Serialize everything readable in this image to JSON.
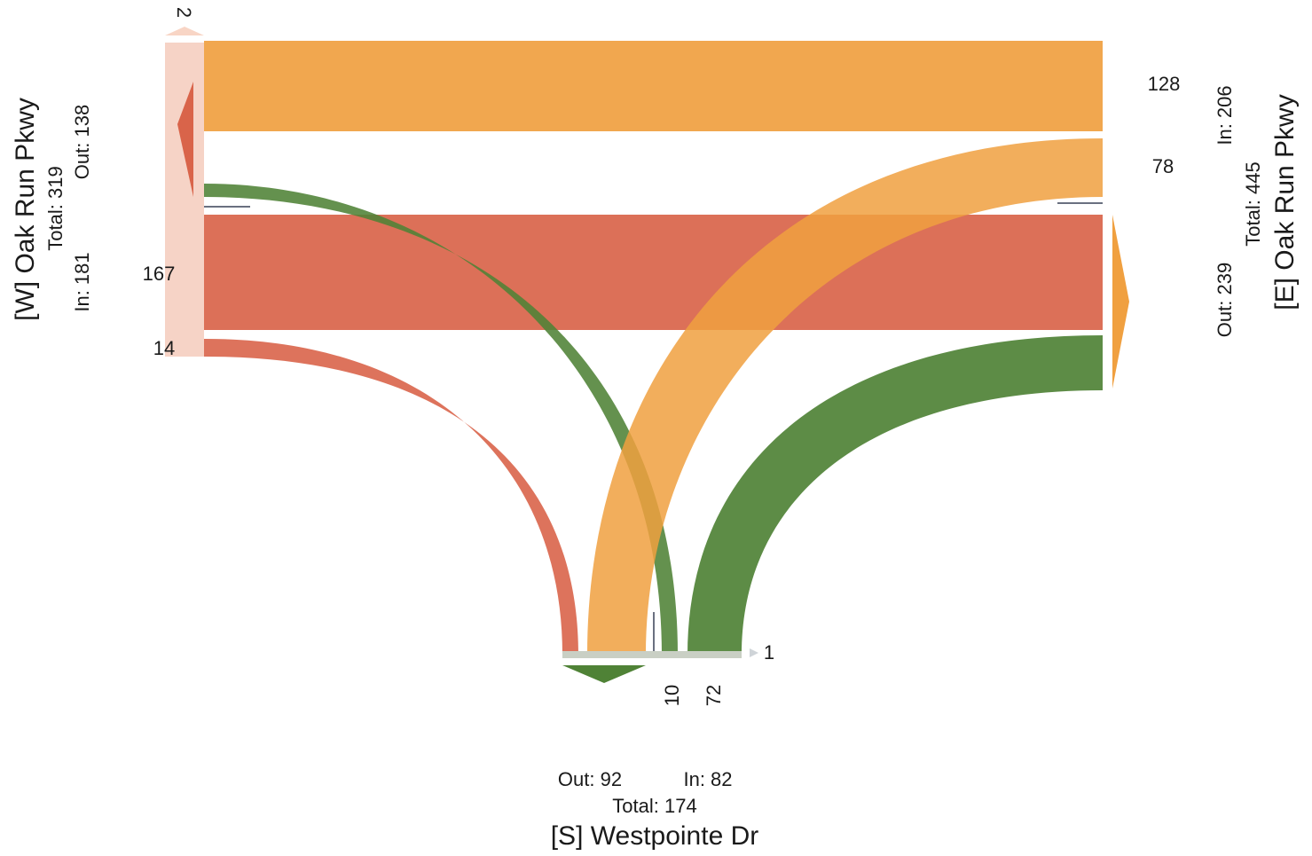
{
  "approaches": {
    "west": {
      "name": "[W] Oak Run Pkwy",
      "total": "Total: 319",
      "out": "Out: 138",
      "in": "In: 181"
    },
    "east": {
      "name": "[E] Oak Run Pkwy",
      "total": "Total: 445",
      "out": "Out: 239",
      "in": "In: 206"
    },
    "south": {
      "name": "[S] Westpointe Dr",
      "total": "Total: 174",
      "out": "Out: 92",
      "in": "In: 82"
    }
  },
  "movement_labels": {
    "w_uturn": "2",
    "w_through": "167",
    "w_right": "14",
    "e_through": "128",
    "e_left": "78",
    "s_left": "10",
    "s_right": "72",
    "s_uturn": "1"
  },
  "colors": {
    "westbound_from_east": "#f0a040",
    "eastbound_from_west": "#d9644a",
    "northbound_from_south": "#5a8a3a",
    "node_bar": "#f5cfc0"
  }
}
